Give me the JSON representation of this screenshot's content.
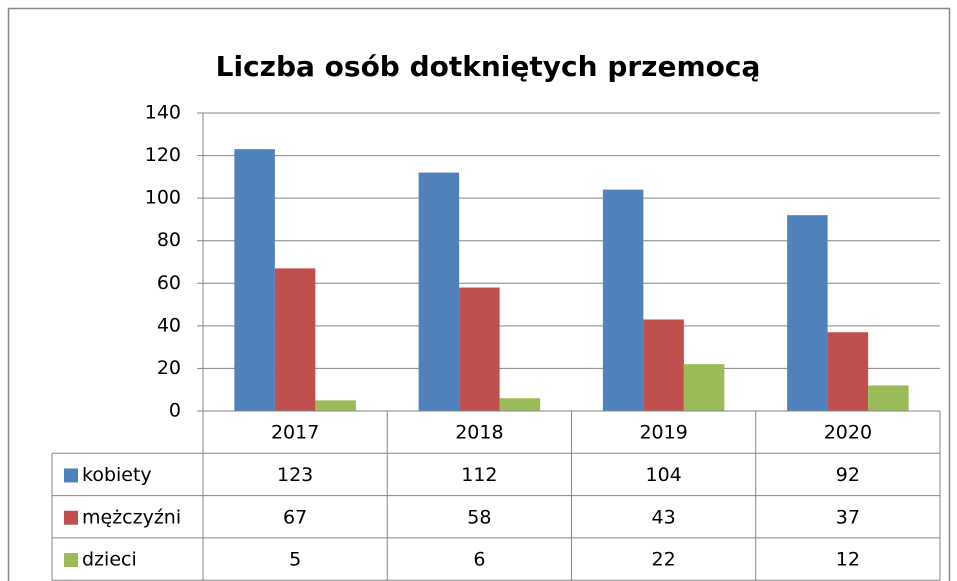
{
  "chart_data": {
    "type": "bar",
    "title": "Liczba osób dotkniętych przemocą",
    "categories": [
      "2017",
      "2018",
      "2019",
      "2020"
    ],
    "series": [
      {
        "name": "kobiety",
        "color": "#4f81bd",
        "values": [
          123,
          112,
          104,
          92
        ]
      },
      {
        "name": "mężczyźni",
        "color": "#c0504d",
        "values": [
          67,
          58,
          43,
          37
        ]
      },
      {
        "name": "dzieci",
        "color": "#9bbb59",
        "values": [
          5,
          6,
          22,
          12
        ]
      }
    ],
    "ylim": [
      0,
      140
    ],
    "yticks": [
      0,
      20,
      40,
      60,
      80,
      100,
      120,
      140
    ],
    "grid": true,
    "data_table": true
  }
}
